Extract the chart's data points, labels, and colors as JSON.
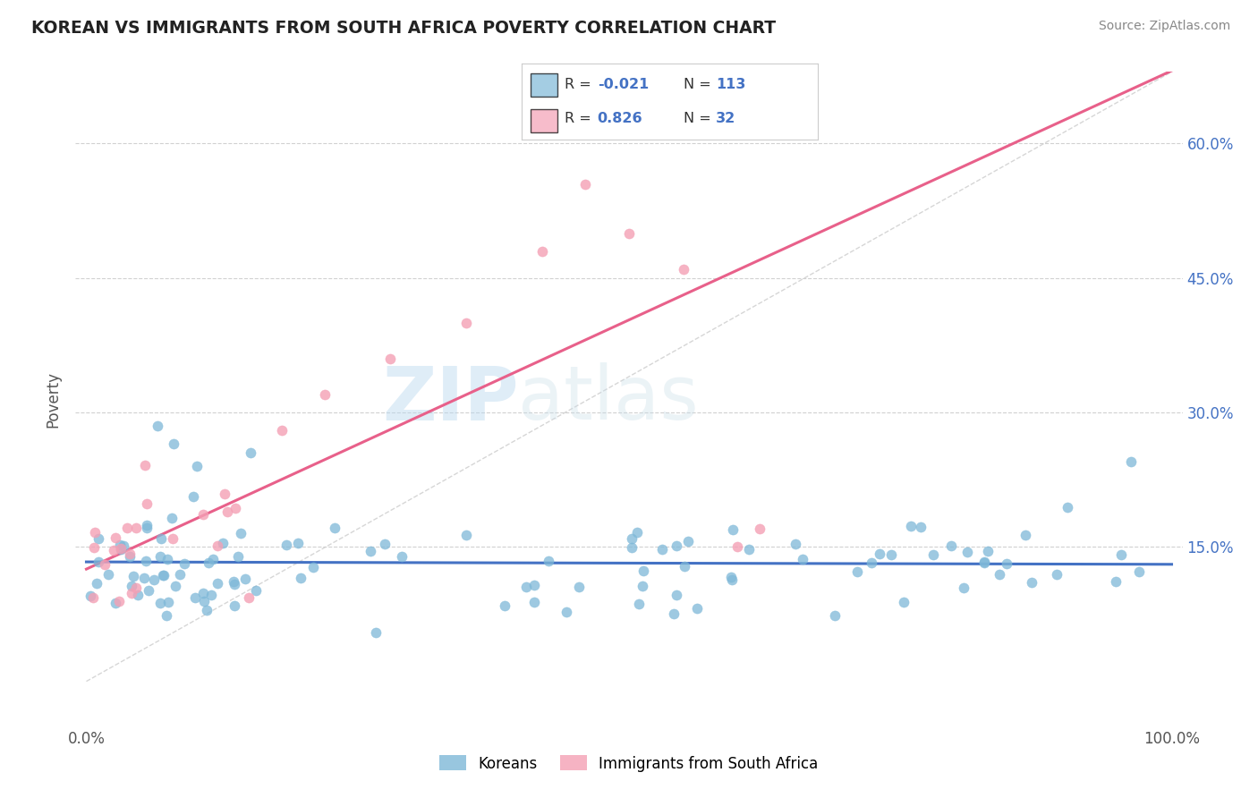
{
  "title": "KOREAN VS IMMIGRANTS FROM SOUTH AFRICA POVERTY CORRELATION CHART",
  "source": "Source: ZipAtlas.com",
  "ylabel": "Poverty",
  "xlim": [
    0.0,
    1.0
  ],
  "ylim": [
    -0.05,
    0.68
  ],
  "ytick_values": [
    0.15,
    0.3,
    0.45,
    0.6
  ],
  "ytick_labels": [
    "15.0%",
    "30.0%",
    "45.0%",
    "60.0%"
  ],
  "xtick_values": [
    0.0,
    1.0
  ],
  "xtick_labels": [
    "0.0%",
    "100.0%"
  ],
  "korean_color": "#7EB8D8",
  "sa_color": "#F4A0B5",
  "korean_line_color": "#4472c4",
  "sa_line_color": "#E8608A",
  "korean_R": -0.021,
  "korean_N": 113,
  "sa_R": 0.826,
  "sa_N": 32,
  "watermark_zip": "ZIP",
  "watermark_atlas": "atlas",
  "legend_label_1": "Koreans",
  "legend_label_2": "Immigrants from South Africa",
  "r_label_color": "#4472c4",
  "n_label_color": "#4472c4",
  "text_color": "#333333",
  "grid_color": "#cccccc",
  "diag_color": "#cccccc",
  "title_color": "#222222",
  "source_color": "#888888",
  "axis_tick_color": "#555555"
}
